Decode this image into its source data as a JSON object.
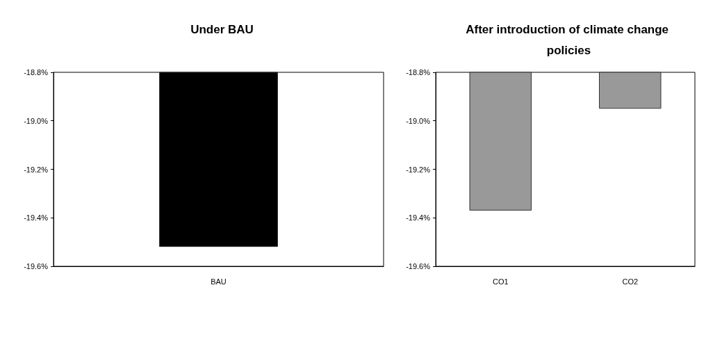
{
  "chart_data": [
    {
      "type": "bar",
      "title": "Under BAU",
      "categories": [
        "BAU"
      ],
      "values": [
        -19.52
      ],
      "color": "#000000",
      "ylim": [
        -19.6,
        -18.8
      ],
      "yticks": [
        {
          "value": -19.6,
          "label": "-19.6%"
        },
        {
          "value": -19.4,
          "label": "-19.4%"
        },
        {
          "value": -19.2,
          "label": "-19.2%"
        },
        {
          "value": -19.0,
          "label": "-19.0%"
        },
        {
          "value": -18.8,
          "label": "-18.8%"
        }
      ],
      "grid": false
    },
    {
      "type": "bar",
      "title": "After introduction of climate change policies",
      "categories": [
        "CO1",
        "CO2"
      ],
      "values": [
        -19.37,
        -18.95
      ],
      "color": "#999999",
      "ylim": [
        -19.6,
        -18.8
      ],
      "yticks": [
        {
          "value": -19.6,
          "label": "-19.6%"
        },
        {
          "value": -19.4,
          "label": "-19.4%"
        },
        {
          "value": -19.2,
          "label": "-19.2%"
        },
        {
          "value": -19.0,
          "label": "-19.0%"
        },
        {
          "value": -18.8,
          "label": "-18.8%"
        }
      ],
      "grid": false
    }
  ]
}
